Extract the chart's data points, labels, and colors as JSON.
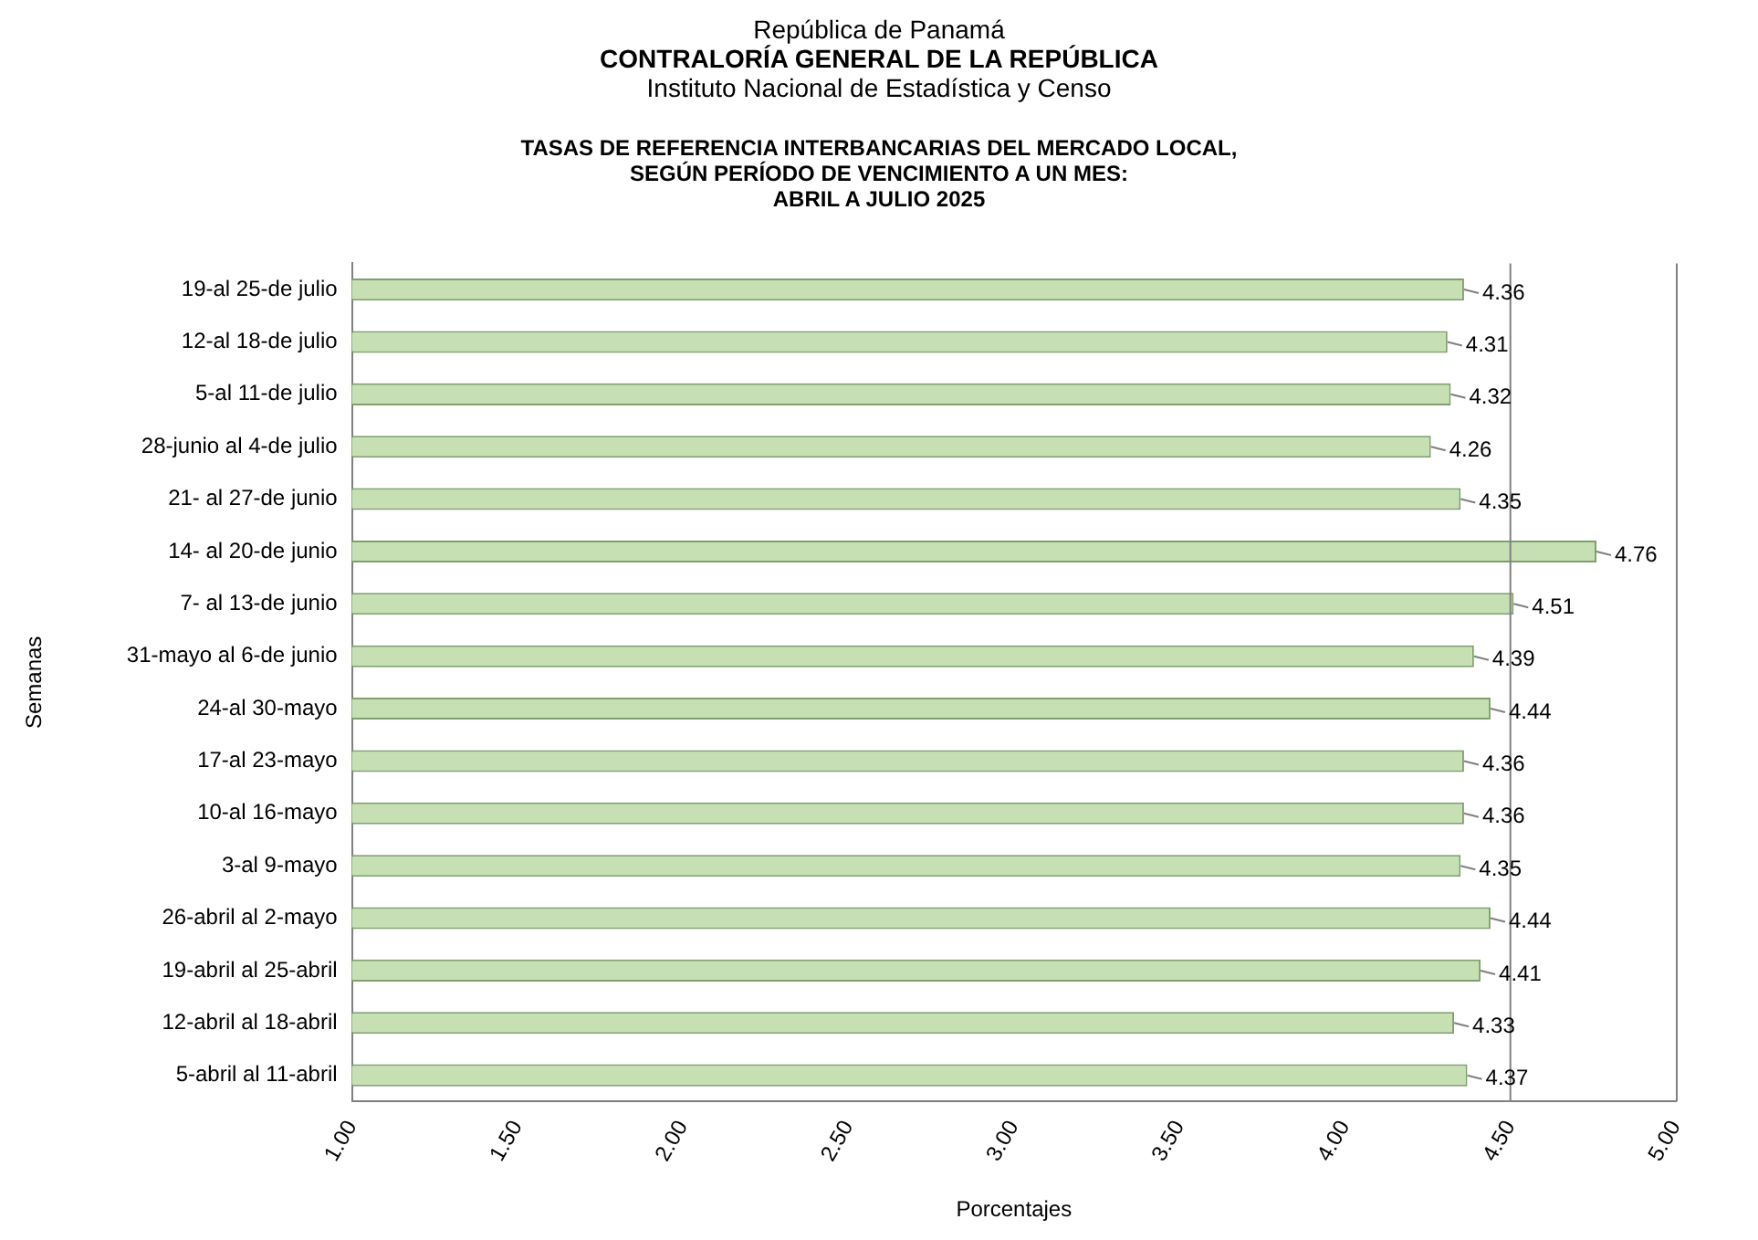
{
  "chart_data": {
    "type": "bar",
    "orientation": "horizontal",
    "annotations": [
      "República de Panamá",
      "CONTRALORÍA GENERAL DE LA REPÚBLICA",
      "Instituto Nacional de Estadística y Censo"
    ],
    "title": "TASAS DE REFERENCIA  INTERBANCARIAS  DEL MERCADO LOCAL,\nSEGÚN PERÍODO DE VENCIMIENTO  A UN MES:\nABRIL A JULIO 2025",
    "xlabel": "Porcentajes",
    "ylabel": "Semanas",
    "categories": [
      "19-al 25-de julio",
      "12-al 18-de julio",
      "5-al 11-de julio",
      "28-junio al 4-de julio",
      "21- al 27-de junio",
      "14- al 20-de junio",
      "7- al 13-de junio",
      "31-mayo al 6-de junio",
      "24-al 30-mayo",
      "17-al 23-mayo",
      "10-al 16-mayo",
      "3-al 9-mayo",
      "26-abril al 2-mayo",
      "19-abril al 25-abril",
      "12-abril al 18-abril",
      "5-abril al 11-abril"
    ],
    "values": [
      4.36,
      4.31,
      4.32,
      4.26,
      4.35,
      4.76,
      4.51,
      4.39,
      4.44,
      4.36,
      4.36,
      4.35,
      4.44,
      4.41,
      4.33,
      4.37
    ],
    "color": "#c6e0b4",
    "data_labels": true,
    "grid": false,
    "legend": false,
    "xlim": [
      1,
      5
    ],
    "xticks": [
      {
        "value": 1,
        "label": "1.00"
      },
      {
        "value": 1.5,
        "label": "1.50"
      },
      {
        "value": 2,
        "label": "2.00"
      },
      {
        "value": 2.5,
        "label": "2.50"
      },
      {
        "value": 3,
        "label": "3.00"
      },
      {
        "value": 3.5,
        "label": "3.50"
      },
      {
        "value": 4,
        "label": "4.00"
      },
      {
        "value": 4.5,
        "label": "4.50"
      },
      {
        "value": 5,
        "label": "5.00"
      }
    ],
    "ref_lines": [
      {
        "axis": "x",
        "value": 4.5,
        "label": null,
        "color": "#808080"
      }
    ]
  }
}
